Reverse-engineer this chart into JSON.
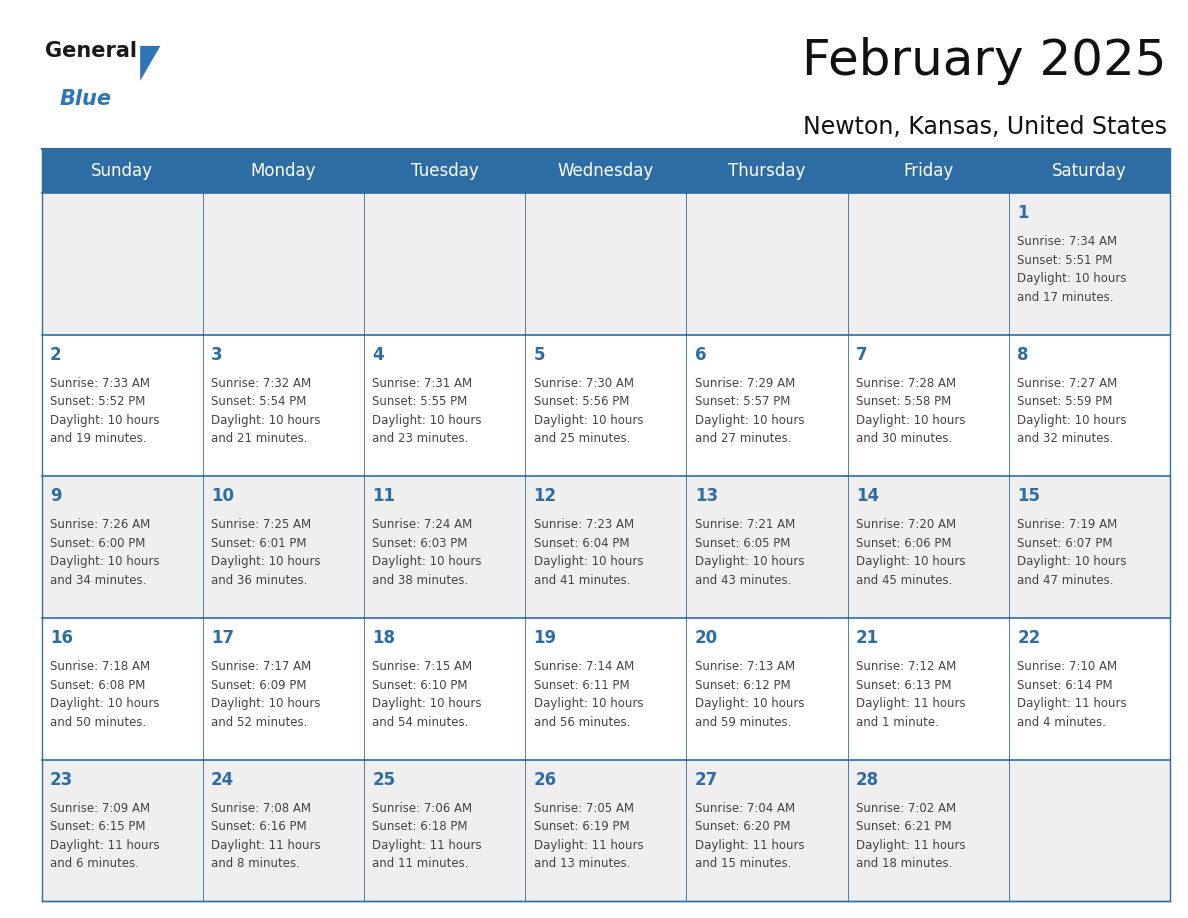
{
  "title": "February 2025",
  "subtitle": "Newton, Kansas, United States",
  "days_of_week": [
    "Sunday",
    "Monday",
    "Tuesday",
    "Wednesday",
    "Thursday",
    "Friday",
    "Saturday"
  ],
  "header_bg": "#2E6DA4",
  "header_text": "#FFFFFF",
  "cell_bg_odd": "#EFEFEF",
  "cell_bg_even": "#FFFFFF",
  "border_color": "#2E6DA4",
  "day_number_color": "#2E6DA4",
  "text_color": "#444444",
  "logo_general_color": "#1a1a1a",
  "logo_blue_color": "#2E75B6",
  "weeks": [
    [
      {
        "day": null,
        "info": null
      },
      {
        "day": null,
        "info": null
      },
      {
        "day": null,
        "info": null
      },
      {
        "day": null,
        "info": null
      },
      {
        "day": null,
        "info": null
      },
      {
        "day": null,
        "info": null
      },
      {
        "day": 1,
        "info": "Sunrise: 7:34 AM\nSunset: 5:51 PM\nDaylight: 10 hours\nand 17 minutes."
      }
    ],
    [
      {
        "day": 2,
        "info": "Sunrise: 7:33 AM\nSunset: 5:52 PM\nDaylight: 10 hours\nand 19 minutes."
      },
      {
        "day": 3,
        "info": "Sunrise: 7:32 AM\nSunset: 5:54 PM\nDaylight: 10 hours\nand 21 minutes."
      },
      {
        "day": 4,
        "info": "Sunrise: 7:31 AM\nSunset: 5:55 PM\nDaylight: 10 hours\nand 23 minutes."
      },
      {
        "day": 5,
        "info": "Sunrise: 7:30 AM\nSunset: 5:56 PM\nDaylight: 10 hours\nand 25 minutes."
      },
      {
        "day": 6,
        "info": "Sunrise: 7:29 AM\nSunset: 5:57 PM\nDaylight: 10 hours\nand 27 minutes."
      },
      {
        "day": 7,
        "info": "Sunrise: 7:28 AM\nSunset: 5:58 PM\nDaylight: 10 hours\nand 30 minutes."
      },
      {
        "day": 8,
        "info": "Sunrise: 7:27 AM\nSunset: 5:59 PM\nDaylight: 10 hours\nand 32 minutes."
      }
    ],
    [
      {
        "day": 9,
        "info": "Sunrise: 7:26 AM\nSunset: 6:00 PM\nDaylight: 10 hours\nand 34 minutes."
      },
      {
        "day": 10,
        "info": "Sunrise: 7:25 AM\nSunset: 6:01 PM\nDaylight: 10 hours\nand 36 minutes."
      },
      {
        "day": 11,
        "info": "Sunrise: 7:24 AM\nSunset: 6:03 PM\nDaylight: 10 hours\nand 38 minutes."
      },
      {
        "day": 12,
        "info": "Sunrise: 7:23 AM\nSunset: 6:04 PM\nDaylight: 10 hours\nand 41 minutes."
      },
      {
        "day": 13,
        "info": "Sunrise: 7:21 AM\nSunset: 6:05 PM\nDaylight: 10 hours\nand 43 minutes."
      },
      {
        "day": 14,
        "info": "Sunrise: 7:20 AM\nSunset: 6:06 PM\nDaylight: 10 hours\nand 45 minutes."
      },
      {
        "day": 15,
        "info": "Sunrise: 7:19 AM\nSunset: 6:07 PM\nDaylight: 10 hours\nand 47 minutes."
      }
    ],
    [
      {
        "day": 16,
        "info": "Sunrise: 7:18 AM\nSunset: 6:08 PM\nDaylight: 10 hours\nand 50 minutes."
      },
      {
        "day": 17,
        "info": "Sunrise: 7:17 AM\nSunset: 6:09 PM\nDaylight: 10 hours\nand 52 minutes."
      },
      {
        "day": 18,
        "info": "Sunrise: 7:15 AM\nSunset: 6:10 PM\nDaylight: 10 hours\nand 54 minutes."
      },
      {
        "day": 19,
        "info": "Sunrise: 7:14 AM\nSunset: 6:11 PM\nDaylight: 10 hours\nand 56 minutes."
      },
      {
        "day": 20,
        "info": "Sunrise: 7:13 AM\nSunset: 6:12 PM\nDaylight: 10 hours\nand 59 minutes."
      },
      {
        "day": 21,
        "info": "Sunrise: 7:12 AM\nSunset: 6:13 PM\nDaylight: 11 hours\nand 1 minute."
      },
      {
        "day": 22,
        "info": "Sunrise: 7:10 AM\nSunset: 6:14 PM\nDaylight: 11 hours\nand 4 minutes."
      }
    ],
    [
      {
        "day": 23,
        "info": "Sunrise: 7:09 AM\nSunset: 6:15 PM\nDaylight: 11 hours\nand 6 minutes."
      },
      {
        "day": 24,
        "info": "Sunrise: 7:08 AM\nSunset: 6:16 PM\nDaylight: 11 hours\nand 8 minutes."
      },
      {
        "day": 25,
        "info": "Sunrise: 7:06 AM\nSunset: 6:18 PM\nDaylight: 11 hours\nand 11 minutes."
      },
      {
        "day": 26,
        "info": "Sunrise: 7:05 AM\nSunset: 6:19 PM\nDaylight: 11 hours\nand 13 minutes."
      },
      {
        "day": 27,
        "info": "Sunrise: 7:04 AM\nSunset: 6:20 PM\nDaylight: 11 hours\nand 15 minutes."
      },
      {
        "day": 28,
        "info": "Sunrise: 7:02 AM\nSunset: 6:21 PM\nDaylight: 11 hours\nand 18 minutes."
      },
      {
        "day": null,
        "info": null
      }
    ]
  ],
  "title_fontsize": 36,
  "subtitle_fontsize": 17,
  "header_fontsize": 12,
  "day_num_fontsize": 12,
  "info_fontsize": 8.5
}
